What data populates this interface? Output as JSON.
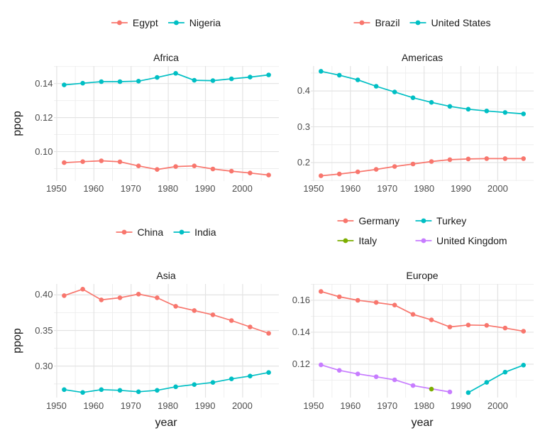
{
  "layout_info": {
    "background": "#FFFFFF"
  },
  "axis_titles": {
    "y": "ppop",
    "x": "year"
  },
  "colors": {
    "grid_major": "#E3E3E3",
    "grid_minor": "#EDEDED",
    "tick_text": "#4D4D4D",
    "title_text": "#1A1A1A",
    "panel_bg": "#FFFFFF",
    "palette_red": "#F8766D",
    "palette_green": "#7CAE00",
    "palette_teal": "#00BFC4",
    "palette_purple": "#C77CFF"
  },
  "chart_data": [
    {
      "type": "line",
      "title": "Africa",
      "ylabel": "ppop",
      "xlabel": "",
      "legend_position": "top",
      "legend_layout": "row",
      "grid": true,
      "x": [
        1952,
        1957,
        1962,
        1967,
        1972,
        1977,
        1982,
        1987,
        1992,
        1997,
        2002,
        2007
      ],
      "xlim": [
        1949.25,
        2009.75
      ],
      "ylim": [
        0.0827,
        0.1503
      ],
      "xticks": {
        "values": [
          1950,
          1960,
          1970,
          1980,
          1990,
          2000
        ],
        "labels": [
          "1950",
          "1960",
          "1970",
          "1980",
          "1990",
          "2000"
        ]
      },
      "yticks": {
        "values": [
          0.1,
          0.12,
          0.14
        ],
        "labels": [
          "0.10",
          "0.12",
          "0.14"
        ]
      },
      "series": [
        {
          "name": "Egypt",
          "color": "#F8766D",
          "values": [
            0.0935,
            0.0941,
            0.0946,
            0.094,
            0.0916,
            0.0895,
            0.0912,
            0.0916,
            0.0898,
            0.0885,
            0.0874,
            0.0862
          ]
        },
        {
          "name": "Nigeria",
          "color": "#00BFC4",
          "values": [
            0.1392,
            0.1402,
            0.1411,
            0.1411,
            0.1414,
            0.1436,
            0.146,
            0.1419,
            0.1417,
            0.1428,
            0.1438,
            0.1451
          ]
        }
      ]
    },
    {
      "type": "line",
      "title": "Americas",
      "ylabel": "",
      "xlabel": "",
      "legend_position": "top",
      "legend_layout": "row",
      "grid": true,
      "x": [
        1952,
        1957,
        1962,
        1967,
        1972,
        1977,
        1982,
        1987,
        1992,
        1997,
        2002,
        2007
      ],
      "xlim": [
        1949.25,
        2009.75
      ],
      "ylim": [
        0.1484,
        0.4696
      ],
      "xticks": {
        "values": [
          1950,
          1960,
          1970,
          1980,
          1990,
          2000
        ],
        "labels": [
          "1950",
          "1960",
          "1970",
          "1980",
          "1990",
          "2000"
        ]
      },
      "yticks": {
        "values": [
          0.2,
          0.3,
          0.4
        ],
        "labels": [
          "0.2",
          "0.3",
          "0.4"
        ]
      },
      "series": [
        {
          "name": "Brazil",
          "color": "#F8766D",
          "values": [
            0.163,
            0.168,
            0.174,
            0.181,
            0.189,
            0.196,
            0.203,
            0.208,
            0.21,
            0.211,
            0.211,
            0.211
          ]
        },
        {
          "name": "United States",
          "color": "#00BFC4",
          "values": [
            0.455,
            0.444,
            0.431,
            0.413,
            0.397,
            0.381,
            0.368,
            0.357,
            0.349,
            0.344,
            0.34,
            0.336
          ]
        }
      ]
    },
    {
      "type": "line",
      "title": "Asia",
      "ylabel": "ppop",
      "xlabel": "year",
      "legend_position": "top",
      "legend_layout": "row",
      "grid": true,
      "x": [
        1952,
        1957,
        1962,
        1967,
        1972,
        1977,
        1982,
        1987,
        1992,
        1997,
        2002,
        2007
      ],
      "xlim": [
        1949.25,
        2009.75
      ],
      "ylim": [
        0.2558,
        0.4153
      ],
      "xticks": {
        "values": [
          1950,
          1960,
          1970,
          1980,
          1990,
          2000
        ],
        "labels": [
          "1950",
          "1960",
          "1970",
          "1980",
          "1990",
          "2000"
        ]
      },
      "yticks": {
        "values": [
          0.3,
          0.35,
          0.4
        ],
        "labels": [
          "0.30",
          "0.35",
          "0.40"
        ]
      },
      "series": [
        {
          "name": "China",
          "color": "#F8766D",
          "values": [
            0.399,
            0.408,
            0.393,
            0.396,
            0.401,
            0.396,
            0.384,
            0.378,
            0.372,
            0.364,
            0.355,
            0.346
          ]
        },
        {
          "name": "India",
          "color": "#00BFC4",
          "values": [
            0.267,
            0.263,
            0.267,
            0.266,
            0.264,
            0.266,
            0.271,
            0.274,
            0.277,
            0.282,
            0.286,
            0.291
          ]
        }
      ]
    },
    {
      "type": "line",
      "title": "Europe",
      "ylabel": "",
      "xlabel": "year",
      "legend_position": "top",
      "legend_layout": "grid-2col",
      "grid": true,
      "x": [
        1952,
        1957,
        1962,
        1967,
        1972,
        1977,
        1982,
        1987,
        1992,
        1997,
        2002,
        2007
      ],
      "xlim": [
        1949.25,
        2009.75
      ],
      "ylim": [
        0.0991,
        0.1702
      ],
      "xticks": {
        "values": [
          1950,
          1960,
          1970,
          1980,
          1990,
          2000
        ],
        "labels": [
          "1950",
          "1960",
          "1970",
          "1980",
          "1990",
          "2000"
        ]
      },
      "yticks": {
        "values": [
          0.12,
          0.14,
          0.16
        ],
        "labels": [
          "0.12",
          "0.14",
          "0.16"
        ]
      },
      "series": [
        {
          "name": "Germany",
          "color": "#F8766D",
          "values": [
            0.1655,
            0.1622,
            0.16,
            0.1586,
            0.157,
            0.1512,
            0.1477,
            0.1433,
            0.1445,
            0.1443,
            0.1426,
            0.1406
          ]
        },
        {
          "name": "Italy",
          "color": "#7CAE00",
          "values": [
            null,
            null,
            null,
            null,
            null,
            null,
            0.1044,
            null,
            null,
            null,
            null,
            null
          ]
        },
        {
          "name": "Turkey",
          "color": "#00BFC4",
          "values": [
            null,
            null,
            null,
            null,
            null,
            null,
            null,
            null,
            0.1022,
            0.1086,
            0.115,
            0.1194
          ]
        },
        {
          "name": "United Kingdom",
          "color": "#C77CFF",
          "values": [
            0.1196,
            0.1161,
            0.1139,
            0.1121,
            0.1102,
            0.1066,
            null,
            0.1026,
            null,
            null,
            null,
            null
          ]
        }
      ]
    }
  ]
}
